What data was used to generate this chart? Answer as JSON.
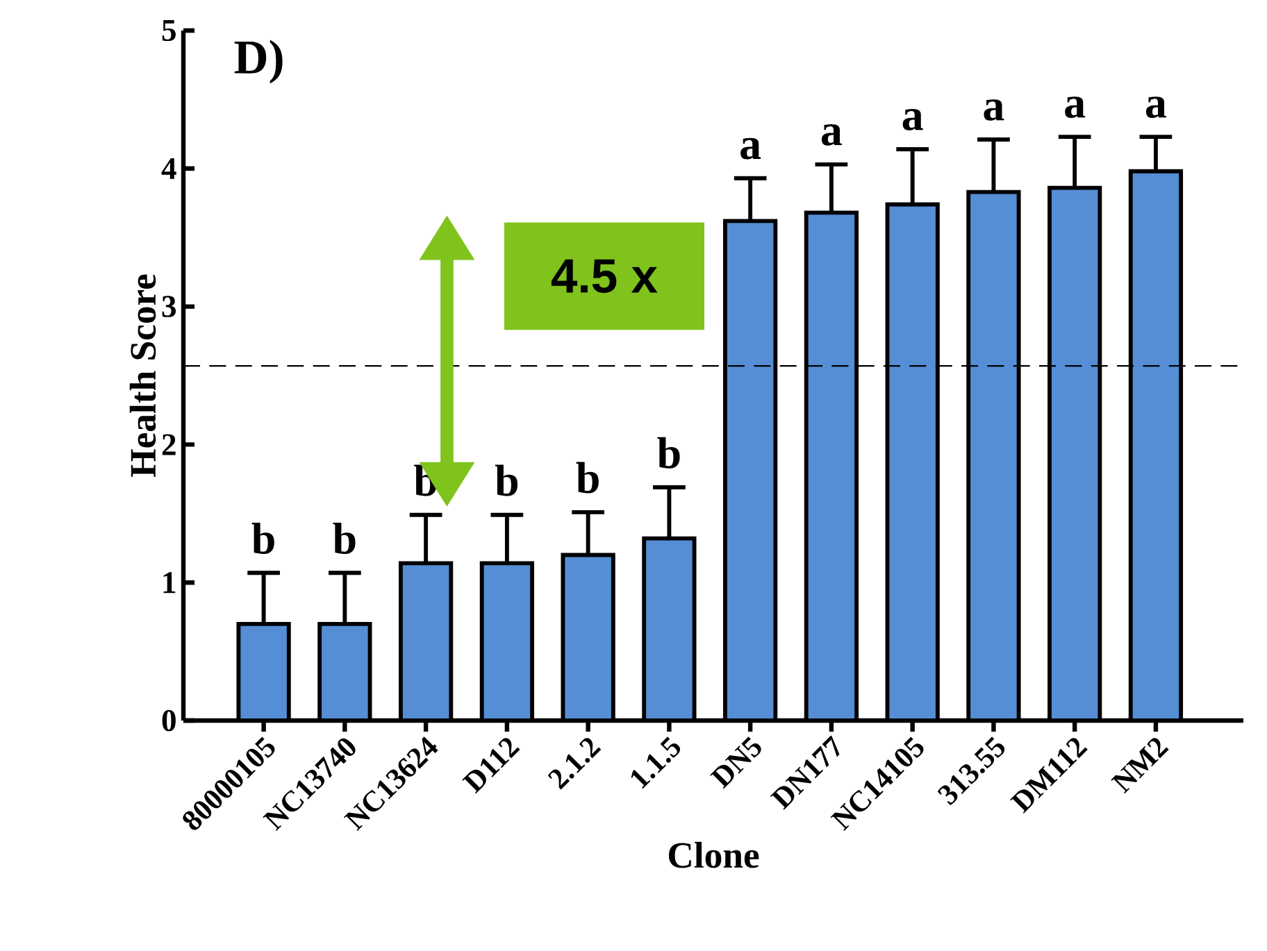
{
  "chart_data": {
    "type": "bar",
    "xlabel": "Clone",
    "ylabel": "Health Score",
    "categories": [
      "80000105",
      "NC13740",
      "NC13624",
      "D112",
      "2.1.2",
      "1.1.5",
      "DN5",
      "DN177",
      "NC14105",
      "313.55",
      "DM112",
      "NM2"
    ],
    "values": [
      0.7,
      0.7,
      1.14,
      1.14,
      1.2,
      1.32,
      3.62,
      3.68,
      3.74,
      3.83,
      3.86,
      3.98
    ],
    "errors": [
      [
        0.7,
        1.07
      ],
      [
        0.7,
        1.07
      ],
      [
        1.14,
        1.49
      ],
      [
        1.14,
        1.49
      ],
      [
        1.2,
        1.51
      ],
      [
        1.32,
        1.69
      ],
      [
        3.62,
        3.93
      ],
      [
        3.68,
        4.03
      ],
      [
        3.74,
        4.14
      ],
      [
        3.83,
        4.21
      ],
      [
        3.86,
        4.23
      ],
      [
        3.98,
        4.23
      ]
    ],
    "color": "#558ed5",
    "ylim": [
      0,
      5
    ],
    "yticks": [
      0,
      1,
      2,
      3,
      4,
      5
    ],
    "grid": false,
    "ref_lines": [
      {
        "axis": "y",
        "value": 2.57,
        "color": "#000000",
        "line_style": "dashed"
      }
    ],
    "annotations": [
      "D)",
      "4.5 x",
      {
        "text": "b",
        "x": "80000105",
        "y": 1.07
      },
      {
        "text": "b",
        "x": "NC13740",
        "y": 1.07
      },
      {
        "text": "b",
        "x": "NC13624",
        "y": 1.49
      },
      {
        "text": "b",
        "x": "D112",
        "y": 1.49
      },
      {
        "text": "b",
        "x": "2.1.2",
        "y": 1.51
      },
      {
        "text": "b",
        "x": "1.1.5",
        "y": 1.69
      },
      {
        "text": "a",
        "x": "DN5",
        "y": 3.93
      },
      {
        "text": "a",
        "x": "DN177",
        "y": 4.03
      },
      {
        "text": "a",
        "x": "NC14105",
        "y": 4.14
      },
      {
        "text": "a",
        "x": "313.55",
        "y": 4.21
      },
      {
        "text": "a",
        "x": "DM112",
        "y": 4.23
      },
      {
        "text": "a",
        "x": "NM2",
        "y": 4.23
      }
    ]
  }
}
